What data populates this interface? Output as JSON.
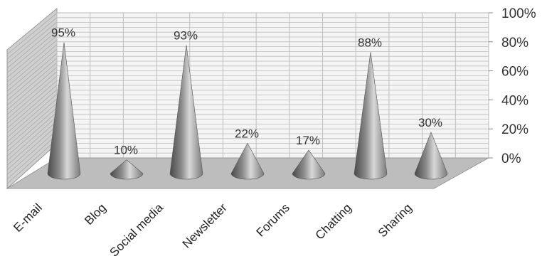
{
  "chart_data": {
    "type": "bar",
    "style": "3d-cone",
    "title": "",
    "xlabel": "",
    "ylabel": "",
    "categories": [
      "E-mail",
      "Blog",
      "Social media",
      "Newsletter",
      "Forums",
      "Chatting",
      "Sharing"
    ],
    "values": [
      95,
      10,
      93,
      22,
      17,
      88,
      30
    ],
    "data_labels": [
      "95%",
      "10%",
      "93%",
      "22%",
      "17%",
      "88%",
      "30%"
    ],
    "ylim": [
      0,
      100
    ],
    "yticks": [
      0,
      20,
      40,
      60,
      80,
      100
    ],
    "ytick_labels": [
      "0%",
      "20%",
      "40%",
      "60%",
      "80%",
      "100%"
    ],
    "grid": true,
    "legend": "none",
    "colors": {
      "cone_dark": "#4a4a4a",
      "cone_light": "#d8d8d8",
      "grid": "#bdbdbd",
      "wall": "#f4f4f4",
      "floor": "#bdbdbd"
    }
  }
}
